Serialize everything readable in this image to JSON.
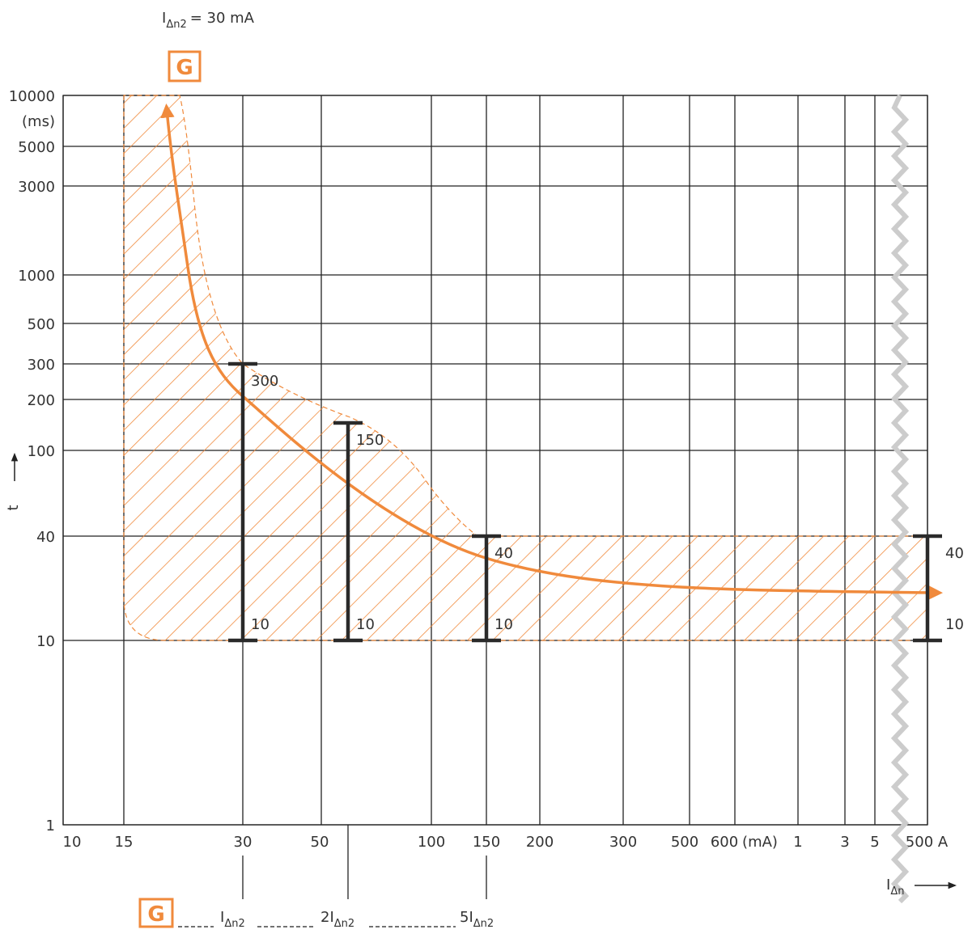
{
  "header": {
    "main": "I",
    "sub": "Δn2",
    "rest": "= 30 mA"
  },
  "curve_marker": "G",
  "y_axis": {
    "ticks": [
      "10000",
      "5000",
      "3000",
      "1000",
      "500",
      "300",
      "200",
      "100",
      "40",
      "10",
      "1"
    ],
    "unit": "(ms)",
    "label": "t"
  },
  "x_axis": {
    "ticks": [
      "10",
      "15",
      "30",
      "50",
      "100",
      "150",
      "200",
      "300",
      "500",
      "600",
      "1",
      "3",
      "5",
      "500 A"
    ],
    "unit": "(mA)",
    "label": {
      "main": "I",
      "sub": "Δn"
    }
  },
  "bars": [
    {
      "top": "300",
      "bottom": "10"
    },
    {
      "top": "150",
      "bottom": "10"
    },
    {
      "top": "40",
      "bottom": "10"
    },
    {
      "top": "40",
      "bottom": "10"
    }
  ],
  "legend": {
    "marker": "G",
    "items": [
      {
        "main": "I",
        "sub": "Δn2"
      },
      {
        "main": "2I",
        "sub": "Δn2"
      },
      {
        "main": "5I",
        "sub": "Δn2"
      }
    ]
  }
}
